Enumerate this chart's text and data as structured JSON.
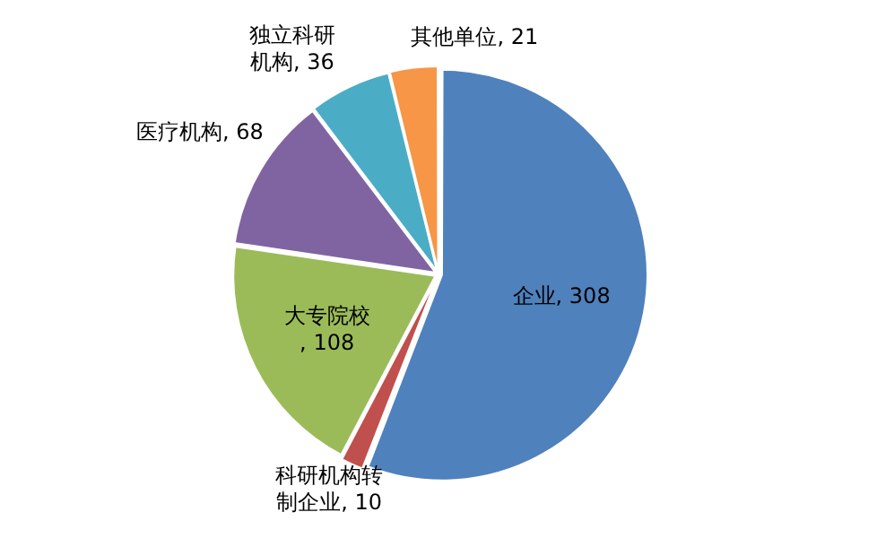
{
  "chart_data": {
    "type": "pie",
    "categories": [
      "企业",
      "科研机构转制企业",
      "大专院校",
      "医疗机构",
      "独立科研机构",
      "其他单位"
    ],
    "values": [
      308,
      10,
      108,
      68,
      36,
      21
    ],
    "colors": [
      "#4f81bd",
      "#c0504d",
      "#9bbb59",
      "#8064a2",
      "#4bacc6",
      "#f79646"
    ],
    "value_labels": [
      ", 308",
      ", 10",
      ", 108",
      ", 68",
      ", 36",
      ", 21"
    ],
    "legend": false
  }
}
